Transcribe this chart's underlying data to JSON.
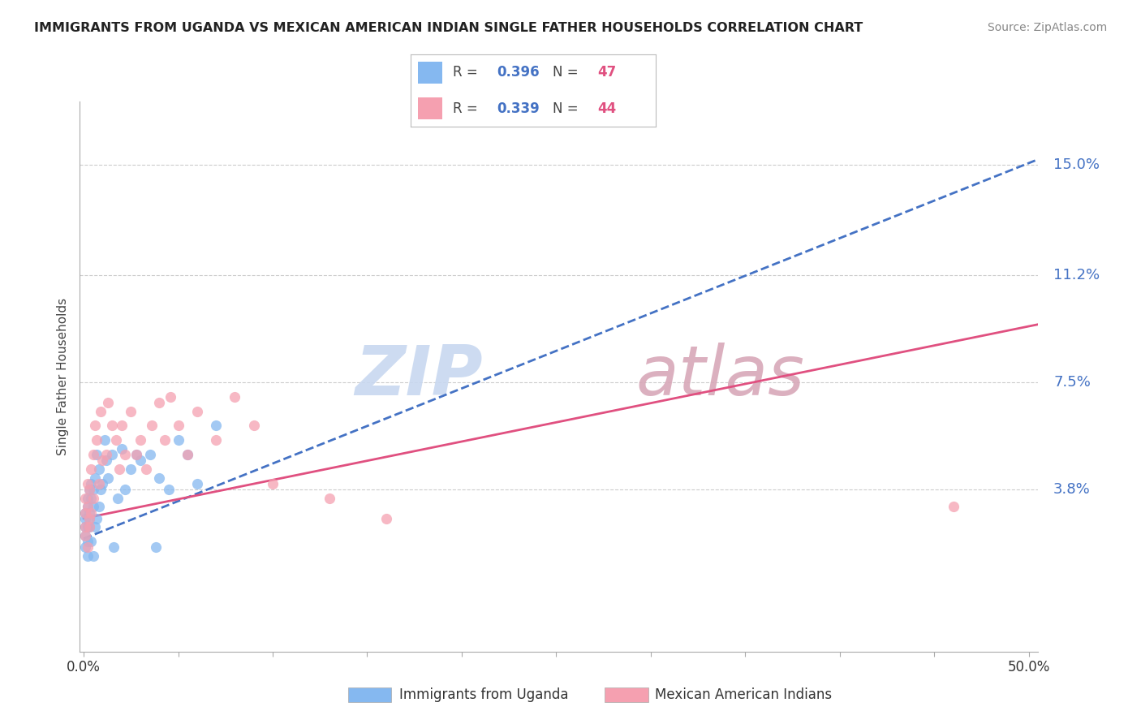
{
  "title": "IMMIGRANTS FROM UGANDA VS MEXICAN AMERICAN INDIAN SINGLE FATHER HOUSEHOLDS CORRELATION CHART",
  "source": "Source: ZipAtlas.com",
  "ylabel": "Single Father Households",
  "xlabel_ticks_labels": [
    "0.0%",
    "",
    "",
    "",
    "",
    "",
    "",
    "",
    "",
    "",
    "50.0%"
  ],
  "xlabel_vals": [
    0.0,
    0.05,
    0.1,
    0.15,
    0.2,
    0.25,
    0.3,
    0.35,
    0.4,
    0.45,
    0.5
  ],
  "ylabel_ticks": [
    "3.8%",
    "7.5%",
    "11.2%",
    "15.0%"
  ],
  "ylabel_vals": [
    0.038,
    0.075,
    0.112,
    0.15
  ],
  "xlim": [
    -0.002,
    0.505
  ],
  "ylim": [
    -0.018,
    0.172
  ],
  "R_uganda": 0.396,
  "N_uganda": 47,
  "R_mexican": 0.339,
  "N_mexican": 44,
  "color_uganda": "#85b8f0",
  "color_mexican": "#f5a0b0",
  "trend_color_uganda": "#4472c4",
  "trend_color_mexican": "#e05080",
  "legend_label_uganda": "Immigrants from Uganda",
  "legend_label_mexican": "Mexican American Indians",
  "watermark": "ZIPatlas",
  "watermark_color_zip": "#c8d8f0",
  "watermark_color_atlas": "#d8a8b8",
  "uganda_x": [
    0.001,
    0.001,
    0.001,
    0.001,
    0.001,
    0.002,
    0.002,
    0.002,
    0.002,
    0.002,
    0.003,
    0.003,
    0.003,
    0.003,
    0.004,
    0.004,
    0.004,
    0.005,
    0.005,
    0.005,
    0.006,
    0.006,
    0.007,
    0.007,
    0.008,
    0.008,
    0.009,
    0.01,
    0.011,
    0.012,
    0.013,
    0.015,
    0.016,
    0.018,
    0.02,
    0.022,
    0.025,
    0.028,
    0.03,
    0.035,
    0.038,
    0.04,
    0.045,
    0.05,
    0.055,
    0.06,
    0.07
  ],
  "uganda_y": [
    0.025,
    0.03,
    0.028,
    0.022,
    0.018,
    0.032,
    0.025,
    0.02,
    0.035,
    0.015,
    0.03,
    0.038,
    0.025,
    0.028,
    0.02,
    0.04,
    0.035,
    0.032,
    0.015,
    0.038,
    0.025,
    0.042,
    0.05,
    0.028,
    0.032,
    0.045,
    0.038,
    0.04,
    0.055,
    0.048,
    0.042,
    0.05,
    0.018,
    0.035,
    0.052,
    0.038,
    0.045,
    0.05,
    0.048,
    0.05,
    0.018,
    0.042,
    0.038,
    0.055,
    0.05,
    0.04,
    0.06
  ],
  "mexican_x": [
    0.001,
    0.001,
    0.001,
    0.001,
    0.002,
    0.002,
    0.002,
    0.003,
    0.003,
    0.003,
    0.004,
    0.004,
    0.005,
    0.005,
    0.006,
    0.007,
    0.008,
    0.009,
    0.01,
    0.012,
    0.013,
    0.015,
    0.017,
    0.019,
    0.02,
    0.022,
    0.025,
    0.028,
    0.03,
    0.033,
    0.036,
    0.04,
    0.043,
    0.046,
    0.05,
    0.055,
    0.06,
    0.07,
    0.08,
    0.09,
    0.1,
    0.13,
    0.16,
    0.46
  ],
  "mexican_y": [
    0.025,
    0.03,
    0.022,
    0.035,
    0.018,
    0.032,
    0.04,
    0.028,
    0.038,
    0.025,
    0.045,
    0.03,
    0.05,
    0.035,
    0.06,
    0.055,
    0.04,
    0.065,
    0.048,
    0.05,
    0.068,
    0.06,
    0.055,
    0.045,
    0.06,
    0.05,
    0.065,
    0.05,
    0.055,
    0.045,
    0.06,
    0.068,
    0.055,
    0.07,
    0.06,
    0.05,
    0.065,
    0.055,
    0.07,
    0.06,
    0.04,
    0.035,
    0.028,
    0.032
  ],
  "trend_uganda_x0": 0.0,
  "trend_uganda_x1": 0.505,
  "trend_uganda_y0": 0.021,
  "trend_uganda_y1": 0.152,
  "trend_mexican_x0": 0.0,
  "trend_mexican_x1": 0.505,
  "trend_mexican_y0": 0.028,
  "trend_mexican_y1": 0.095
}
